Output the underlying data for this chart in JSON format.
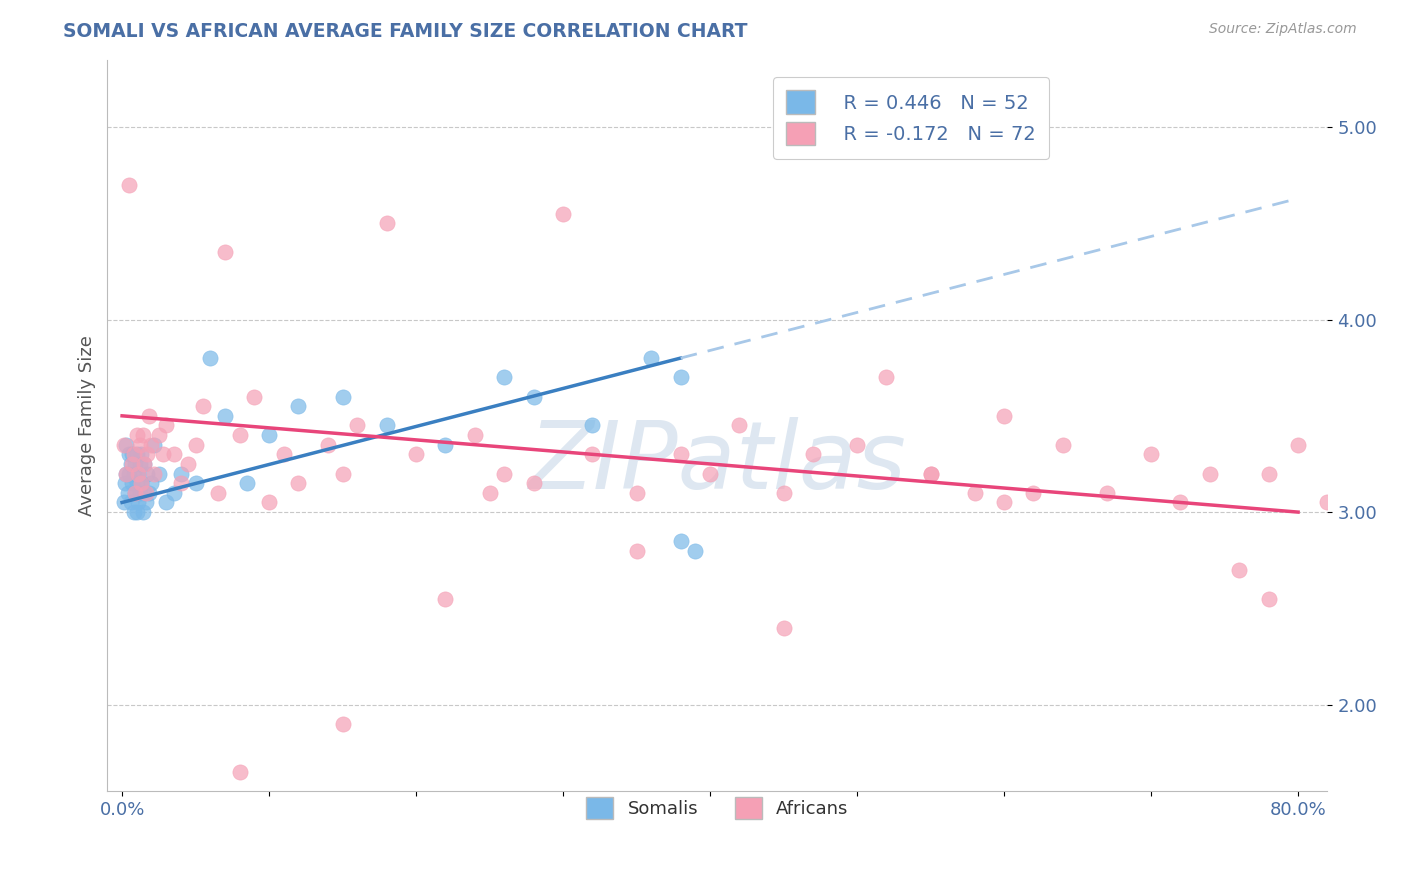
{
  "title": "SOMALI VS AFRICAN AVERAGE FAMILY SIZE CORRELATION CHART",
  "source": "Source: ZipAtlas.com",
  "ylabel": "Average Family Size",
  "xlim": [
    -0.01,
    0.82
  ],
  "ylim": [
    1.55,
    5.35
  ],
  "yticks": [
    2.0,
    3.0,
    4.0,
    5.0
  ],
  "xticks": [
    0.0,
    0.1,
    0.2,
    0.3,
    0.4,
    0.5,
    0.6,
    0.7,
    0.8
  ],
  "xtick_labels": [
    "0.0%",
    "",
    "",
    "",
    "",
    "",
    "",
    "",
    "80.0%"
  ],
  "somali_color": "#7ab8e8",
  "african_color": "#f5a0b5",
  "somali_line_color": "#3a7fc1",
  "african_line_color": "#e8457a",
  "dashed_line_color": "#a8c8e8",
  "background_color": "#ffffff",
  "grid_color": "#c8c8c8",
  "title_color": "#4a6fa5",
  "axis_label_color": "#555555",
  "tick_color": "#4a6fa5",
  "watermark": "ZIPatlas",
  "watermark_color": "#c8d8e8",
  "somali_x": [
    0.001,
    0.002,
    0.003,
    0.003,
    0.004,
    0.005,
    0.005,
    0.006,
    0.006,
    0.007,
    0.007,
    0.008,
    0.008,
    0.009,
    0.009,
    0.01,
    0.01,
    0.01,
    0.011,
    0.011,
    0.012,
    0.012,
    0.013,
    0.013,
    0.014,
    0.015,
    0.015,
    0.016,
    0.017,
    0.018,
    0.02,
    0.022,
    0.025,
    0.03,
    0.035,
    0.04,
    0.05,
    0.06,
    0.07,
    0.085,
    0.1,
    0.12,
    0.15,
    0.18,
    0.22,
    0.26,
    0.28,
    0.32,
    0.36,
    0.38,
    0.38,
    0.39
  ],
  "somali_y": [
    3.05,
    3.15,
    3.2,
    3.35,
    3.1,
    3.2,
    3.3,
    3.05,
    3.25,
    3.15,
    3.3,
    3.0,
    3.2,
    3.1,
    3.25,
    3.0,
    3.15,
    3.3,
    3.05,
    3.2,
    3.1,
    3.25,
    3.15,
    3.3,
    3.0,
    3.1,
    3.25,
    3.05,
    3.2,
    3.1,
    3.15,
    3.35,
    3.2,
    3.05,
    3.1,
    3.2,
    3.15,
    3.8,
    3.5,
    3.15,
    3.4,
    3.55,
    3.6,
    3.45,
    3.35,
    3.7,
    3.6,
    3.45,
    3.8,
    3.7,
    2.85,
    2.8
  ],
  "african_x": [
    0.001,
    0.003,
    0.005,
    0.007,
    0.008,
    0.009,
    0.01,
    0.011,
    0.012,
    0.013,
    0.014,
    0.015,
    0.016,
    0.017,
    0.018,
    0.02,
    0.022,
    0.025,
    0.028,
    0.03,
    0.035,
    0.04,
    0.045,
    0.05,
    0.055,
    0.065,
    0.07,
    0.08,
    0.09,
    0.1,
    0.11,
    0.12,
    0.14,
    0.15,
    0.16,
    0.18,
    0.2,
    0.22,
    0.24,
    0.26,
    0.28,
    0.3,
    0.32,
    0.35,
    0.38,
    0.4,
    0.42,
    0.45,
    0.47,
    0.5,
    0.52,
    0.55,
    0.58,
    0.6,
    0.62,
    0.64,
    0.67,
    0.7,
    0.72,
    0.74,
    0.76,
    0.78,
    0.8,
    0.82,
    0.78,
    0.6,
    0.55,
    0.45,
    0.35,
    0.25,
    0.15,
    0.08
  ],
  "african_y": [
    3.35,
    3.2,
    4.7,
    3.25,
    3.3,
    3.1,
    3.4,
    3.2,
    3.35,
    3.15,
    3.4,
    3.25,
    3.1,
    3.3,
    3.5,
    3.35,
    3.2,
    3.4,
    3.3,
    3.45,
    3.3,
    3.15,
    3.25,
    3.35,
    3.55,
    3.1,
    4.35,
    3.4,
    3.6,
    3.05,
    3.3,
    3.15,
    3.35,
    3.2,
    3.45,
    4.5,
    3.3,
    2.55,
    3.4,
    3.2,
    3.15,
    4.55,
    3.3,
    3.1,
    3.3,
    3.2,
    3.45,
    3.1,
    3.3,
    3.35,
    3.7,
    3.2,
    3.1,
    3.5,
    3.1,
    3.35,
    3.1,
    3.3,
    3.05,
    3.2,
    2.7,
    2.55,
    3.35,
    3.05,
    3.2,
    3.05,
    3.2,
    2.4,
    2.8,
    3.1,
    1.9,
    1.65
  ]
}
